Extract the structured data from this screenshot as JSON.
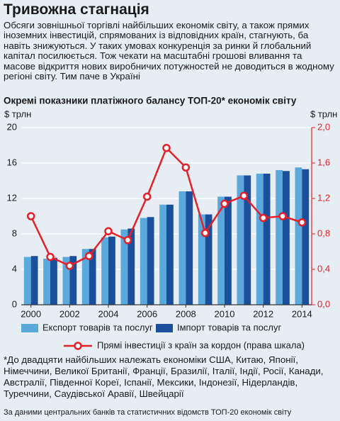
{
  "header": {
    "title": "Тривожна стагнація",
    "text": "Обсяги зовнішньої торгівлі найбільших економік світу, а також прямих іноземних інвестицій, спрямованих із відповідних країн, стагнують, ба навіть знижуються. У таких умовах конкуренція за ринки й глобальний капітал посилюється. Тож чекати на масштабні грошові вливання та масове відкриття нових виробничих потужностей не доводиться в жодному регіоні світу. Тим паче в Україні"
  },
  "chart_data": {
    "type": "bar",
    "title": "Окремі показники платіжного балансу ТОП-20* економік світу",
    "ylabel": "$ трлн",
    "y2label": "$ трлн",
    "categories": [
      "2000",
      null,
      "2002",
      null,
      "2004",
      null,
      "2006",
      null,
      "2008",
      null,
      "2010",
      null,
      "2012",
      null,
      "2014"
    ],
    "series": [
      {
        "name": "Експорт товарів та послуг",
        "color": "#5aa9dc",
        "values": [
          5.4,
          5.2,
          5.4,
          6.3,
          7.6,
          8.5,
          9.8,
          11.3,
          12.8,
          10.2,
          12.2,
          14.6,
          14.8,
          15.2,
          15.5
        ]
      },
      {
        "name": "Імпорт товарів та послуг",
        "color": "#1b4f9c",
        "values": [
          5.5,
          5.3,
          5.5,
          6.3,
          7.7,
          8.6,
          9.9,
          11.3,
          12.8,
          10.2,
          12.2,
          14.6,
          14.8,
          15.1,
          15.3
        ]
      },
      {
        "name": "Прямі інвестиції з країн за кордон (права шкала)",
        "color": "#e5202a",
        "type": "line",
        "axis": "y2",
        "values": [
          1.0,
          0.54,
          0.44,
          0.55,
          0.83,
          0.73,
          1.22,
          1.77,
          1.55,
          0.81,
          1.14,
          1.23,
          0.98,
          1.0,
          0.93
        ]
      }
    ],
    "ylim": [
      0,
      20
    ],
    "yticks": [
      0,
      4,
      8,
      12,
      16,
      20
    ],
    "y2lim": [
      0,
      2
    ],
    "y2ticks": [
      {
        "value": 0,
        "label": "0,0"
      },
      {
        "value": 0.4,
        "label": "0,4"
      },
      {
        "value": 0.8,
        "label": "0,8"
      },
      {
        "value": 1.2,
        "label": "1,2"
      },
      {
        "value": 1.6,
        "label": "1,6"
      },
      {
        "value": 2,
        "label": "2,0"
      }
    ],
    "grid": true
  },
  "footnote": "*До двадцяти найбільших належать економіки США, Китаю, Японії, Німеччини, Великої Британії, Франції, Бразилії, Італії, Індії, Росії, Канади, Австралії, Південної Кореї, Іспанії, Мексики, Індонезії, Нідерландів, Туреччини, Саудівської Аравії, Швейцарії",
  "source": "За даними центральних банків та статистичних відомств ТОП-20 економік світу"
}
